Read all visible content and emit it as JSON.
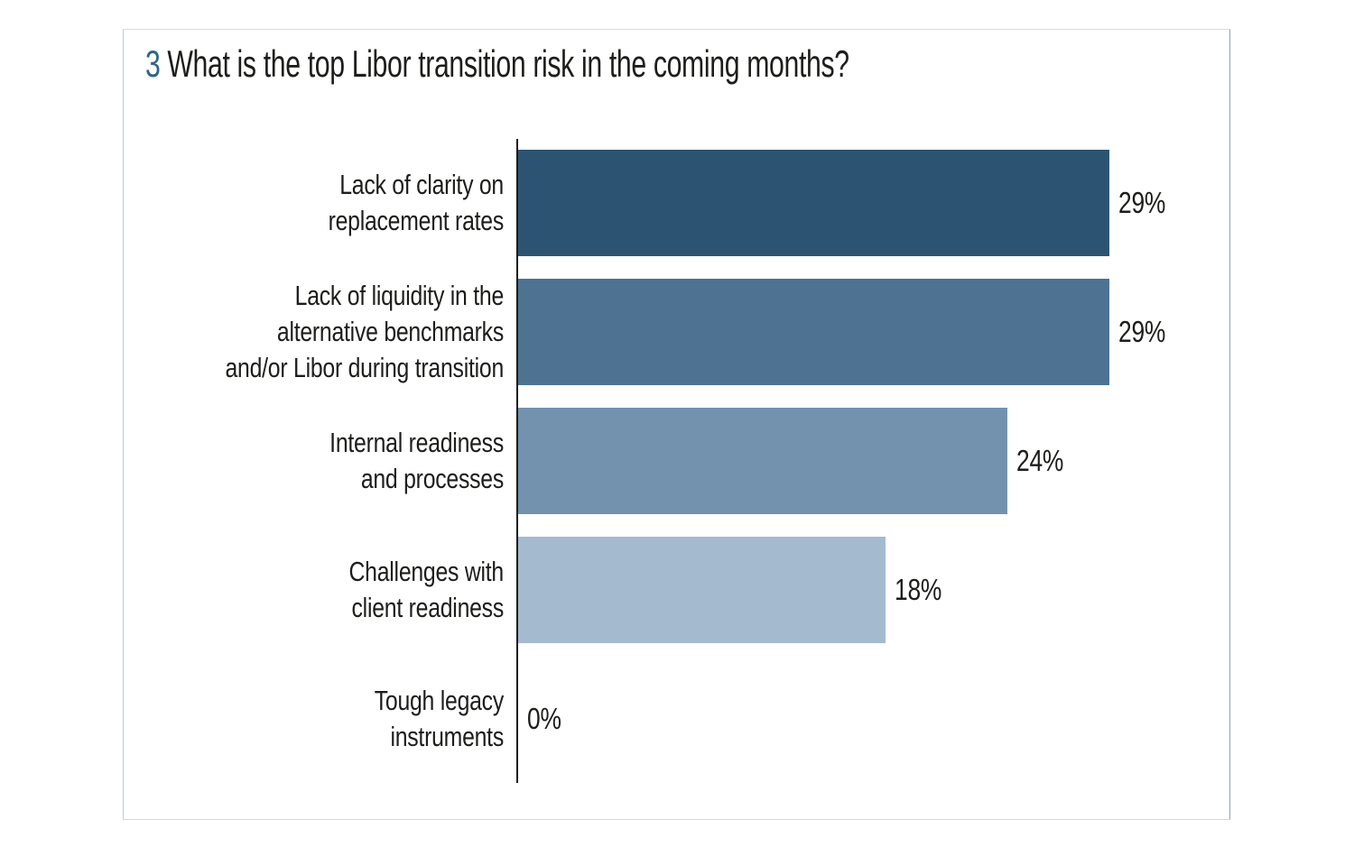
{
  "card": {
    "title_number": "3",
    "title_text": "What is the top Libor transition risk in the coming months?"
  },
  "colors": {
    "title_number": "#2e6588",
    "title_text": "#1d1d1b",
    "card_border": "#a9c0cf",
    "axis": "#1c1c1c",
    "value_label": "#1d1d1b",
    "category_label": "#1d1d1b"
  },
  "chart_data": {
    "type": "bar",
    "orientation": "horizontal",
    "title": "3 What is the top Libor transition risk in the coming months?",
    "categories": [
      "Lack of clarity on replacement rates",
      "Lack of liquidity in the alternative benchmarks and/or Libor during transition",
      "Internal readiness and processes",
      "Challenges with client readiness",
      "Tough legacy instruments"
    ],
    "category_lines": [
      [
        "Lack of clarity on",
        "replacement rates"
      ],
      [
        "Lack of liquidity in the",
        "alternative benchmarks",
        "and/or Libor during transition"
      ],
      [
        "Internal readiness",
        "and processes"
      ],
      [
        "Challenges with",
        "client readiness"
      ],
      [
        "Tough legacy",
        "instruments"
      ]
    ],
    "values": [
      29,
      29,
      24,
      18,
      0
    ],
    "value_labels": [
      "29%",
      "29%",
      "24%",
      "18%",
      "0%"
    ],
    "bar_colors": [
      "#2c5472",
      "#4e7292",
      "#7292ad",
      "#a4bacf",
      "#a4bacf"
    ],
    "xlabel": "",
    "ylabel": "",
    "xlim": [
      0,
      29
    ],
    "grid": false,
    "legend": false,
    "value_labels_position": "right-of-bar"
  }
}
